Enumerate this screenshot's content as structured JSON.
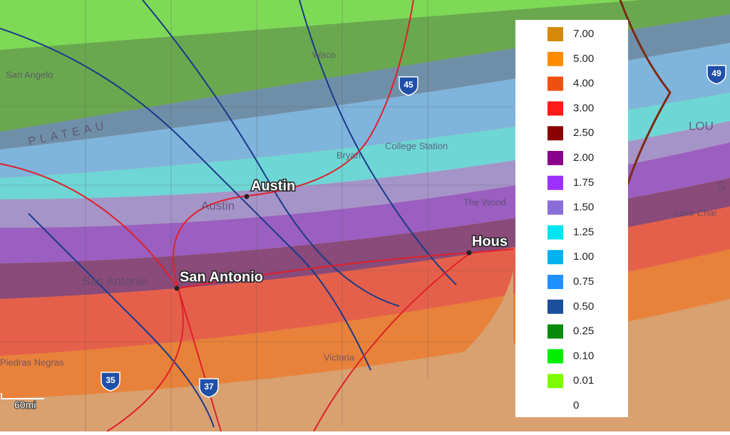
{
  "map": {
    "cities": [
      "Austin",
      "San Antonio",
      "Hous"
    ],
    "basemap_labels": [
      "San Angelo",
      "Waco",
      "Bryan",
      "College Station",
      "Austin",
      "San Antonio",
      "Piedras Negras",
      "Victoria",
      "The Wood",
      "Lake Char",
      "LOU",
      "S",
      "PLATEAU"
    ],
    "highways": [
      "45",
      "49",
      "35",
      "37"
    ],
    "scale": "60mi",
    "legend": [
      {
        "label": "7.00",
        "color": "#d4890a"
      },
      {
        "label": "5.00",
        "color": "#ff8c00"
      },
      {
        "label": "4.00",
        "color": "#f0500f"
      },
      {
        "label": "3.00",
        "color": "#ff1a1a"
      },
      {
        "label": "2.50",
        "color": "#8b0000"
      },
      {
        "label": "2.00",
        "color": "#8b008b"
      },
      {
        "label": "1.75",
        "color": "#9b30ff"
      },
      {
        "label": "1.50",
        "color": "#8a6ed8"
      },
      {
        "label": "1.25",
        "color": "#00e5ee"
      },
      {
        "label": "1.00",
        "color": "#00b2ee"
      },
      {
        "label": "0.75",
        "color": "#1e90ff"
      },
      {
        "label": "0.50",
        "color": "#1b4f9a"
      },
      {
        "label": "0.25",
        "color": "#0a8a0a"
      },
      {
        "label": "0.10",
        "color": "#00ee00"
      },
      {
        "label": "0.01",
        "color": "#7cfc00"
      },
      {
        "label": "0",
        "color": "#ffffff"
      }
    ]
  }
}
